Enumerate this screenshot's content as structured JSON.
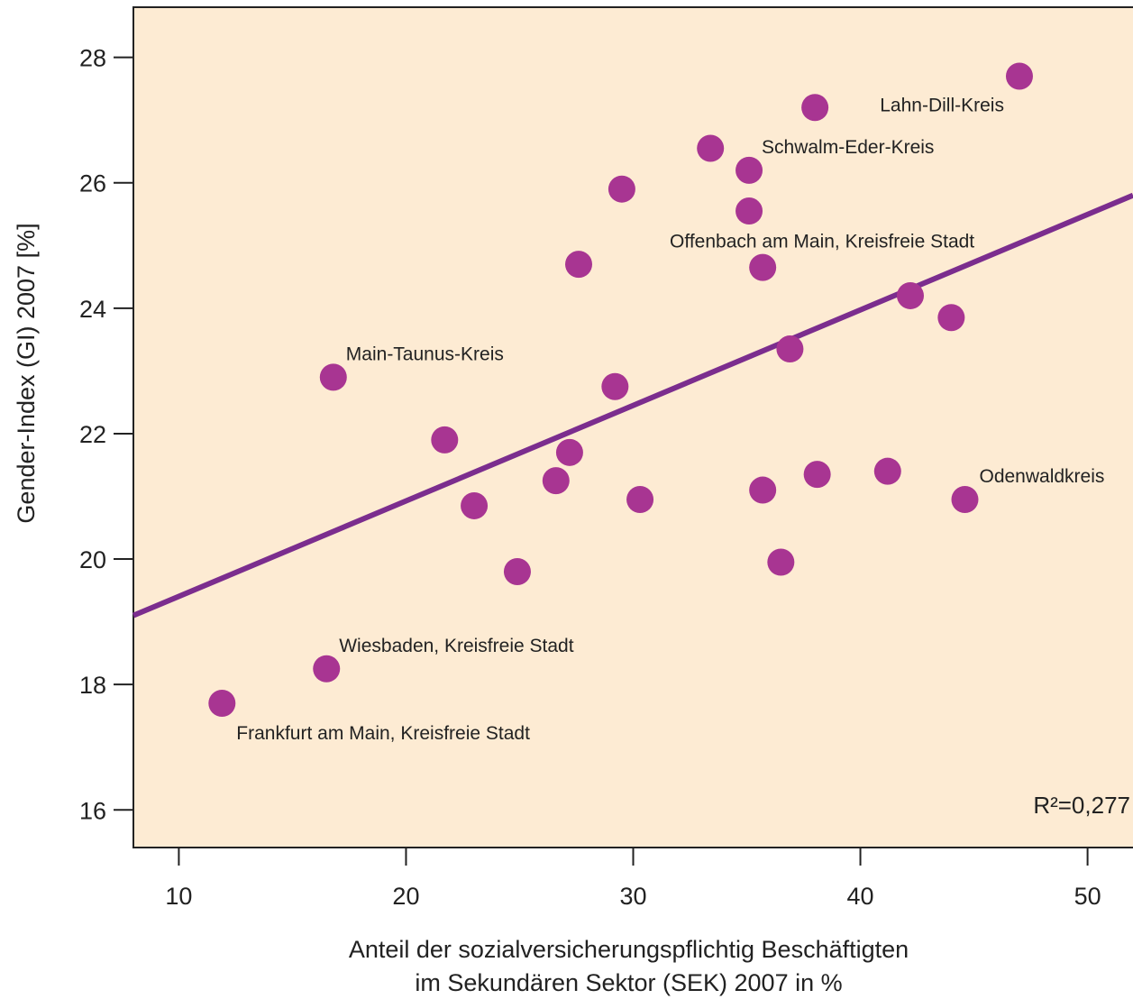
{
  "chart_data": {
    "type": "scatter",
    "xlabel_lines": [
      "Anteil der sozialversicherungspflichtig Beschäftigten",
      "im Sekundären Sektor (SEK) 2007 in %"
    ],
    "ylabel": "Gender-Index (GI) 2007 [%]",
    "xlim": [
      8,
      52
    ],
    "ylim": [
      15.4,
      28.8
    ],
    "xticks": [
      10,
      20,
      30,
      40,
      50
    ],
    "yticks": [
      16,
      18,
      20,
      22,
      24,
      26,
      28
    ],
    "grid": false,
    "points": [
      {
        "x": 11.9,
        "y": 17.7,
        "label": "Frankfurt am Main, Kreisfreie Stadt"
      },
      {
        "x": 16.5,
        "y": 18.25,
        "label": "Wiesbaden, Kreisfreie Stadt"
      },
      {
        "x": 16.8,
        "y": 22.9,
        "label": "Main-Taunus-Kreis"
      },
      {
        "x": 21.7,
        "y": 21.9
      },
      {
        "x": 23.0,
        "y": 20.85
      },
      {
        "x": 24.9,
        "y": 19.8
      },
      {
        "x": 26.6,
        "y": 21.25
      },
      {
        "x": 27.2,
        "y": 21.7
      },
      {
        "x": 27.6,
        "y": 24.7
      },
      {
        "x": 29.2,
        "y": 22.75
      },
      {
        "x": 29.5,
        "y": 25.9
      },
      {
        "x": 30.3,
        "y": 20.95
      },
      {
        "x": 33.4,
        "y": 26.55
      },
      {
        "x": 35.1,
        "y": 26.2,
        "label": "Schwalm-Eder-Kreis"
      },
      {
        "x": 35.1,
        "y": 25.55
      },
      {
        "x": 35.7,
        "y": 24.65,
        "label": "Offenbach am Main, Kreisfreie Stadt"
      },
      {
        "x": 35.7,
        "y": 21.1
      },
      {
        "x": 36.5,
        "y": 19.95
      },
      {
        "x": 36.9,
        "y": 23.35
      },
      {
        "x": 38.0,
        "y": 27.2
      },
      {
        "x": 38.1,
        "y": 21.35
      },
      {
        "x": 41.2,
        "y": 21.4
      },
      {
        "x": 42.2,
        "y": 24.2
      },
      {
        "x": 44.0,
        "y": 23.85
      },
      {
        "x": 44.6,
        "y": 20.95,
        "label": "Odenwaldkreis"
      },
      {
        "x": 47.0,
        "y": 27.7,
        "label": "Lahn-Dill-Kreis"
      }
    ],
    "trendline": {
      "x": [
        8,
        52
      ],
      "y": [
        19.1,
        25.8
      ]
    },
    "annotation": "R²=0,277",
    "colors": {
      "background": "#fdebd3",
      "points": "#a83592",
      "trendline": "#7b2d8e"
    }
  }
}
